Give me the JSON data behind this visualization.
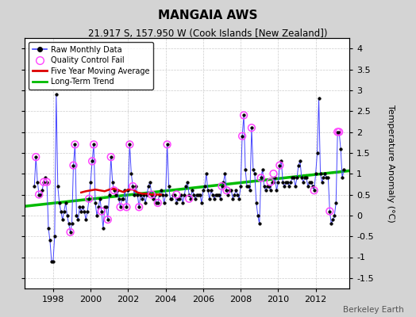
{
  "title": "MANGAIA AWS",
  "subtitle": "21.917 S, 157.950 W (Cook Islands [New Zealand])",
  "ylabel": "Temperature Anomaly (°C)",
  "credit": "Berkeley Earth",
  "ylim": [
    -1.75,
    4.25
  ],
  "xlim": [
    1996.5,
    2013.8
  ],
  "yticks": [
    -1.5,
    -1.0,
    -0.5,
    0.0,
    0.5,
    1.0,
    1.5,
    2.0,
    2.5,
    3.0,
    3.5,
    4.0
  ],
  "xticks": [
    1998,
    2000,
    2002,
    2004,
    2006,
    2008,
    2010,
    2012
  ],
  "fig_bg_color": "#d4d4d4",
  "plot_bg_color": "#ffffff",
  "raw_line_color": "#4444ff",
  "raw_marker_color": "#000000",
  "qc_color": "#ff44ff",
  "ma_color": "#dd0000",
  "trend_color": "#00bb00",
  "trend_x": [
    1996.5,
    2013.8
  ],
  "trend_y": [
    0.22,
    1.07
  ],
  "raw_x": [
    1997.0,
    1997.083,
    1997.167,
    1997.25,
    1997.333,
    1997.417,
    1997.5,
    1997.583,
    1997.667,
    1997.75,
    1997.833,
    1997.917,
    1998.0,
    1998.083,
    1998.167,
    1998.25,
    1998.333,
    1998.417,
    1998.5,
    1998.583,
    1998.667,
    1998.75,
    1998.833,
    1998.917,
    1999.0,
    1999.083,
    1999.167,
    1999.25,
    1999.333,
    1999.417,
    1999.5,
    1999.583,
    1999.667,
    1999.75,
    1999.833,
    1999.917,
    2000.0,
    2000.083,
    2000.167,
    2000.25,
    2000.333,
    2000.417,
    2000.5,
    2000.583,
    2000.667,
    2000.75,
    2000.833,
    2000.917,
    2001.0,
    2001.083,
    2001.167,
    2001.25,
    2001.333,
    2001.417,
    2001.5,
    2001.583,
    2001.667,
    2001.75,
    2001.833,
    2001.917,
    2002.0,
    2002.083,
    2002.167,
    2002.25,
    2002.333,
    2002.417,
    2002.5,
    2002.583,
    2002.667,
    2002.75,
    2002.833,
    2002.917,
    2003.0,
    2003.083,
    2003.167,
    2003.25,
    2003.333,
    2003.417,
    2003.5,
    2003.583,
    2003.667,
    2003.75,
    2003.833,
    2003.917,
    2004.0,
    2004.083,
    2004.167,
    2004.25,
    2004.333,
    2004.417,
    2004.5,
    2004.583,
    2004.667,
    2004.75,
    2004.833,
    2004.917,
    2005.0,
    2005.083,
    2005.167,
    2005.25,
    2005.333,
    2005.417,
    2005.5,
    2005.583,
    2005.667,
    2005.75,
    2005.833,
    2005.917,
    2006.0,
    2006.083,
    2006.167,
    2006.25,
    2006.333,
    2006.417,
    2006.5,
    2006.583,
    2006.667,
    2006.75,
    2006.833,
    2006.917,
    2007.0,
    2007.083,
    2007.167,
    2007.25,
    2007.333,
    2007.417,
    2007.5,
    2007.583,
    2007.667,
    2007.75,
    2007.833,
    2007.917,
    2008.0,
    2008.083,
    2008.167,
    2008.25,
    2008.333,
    2008.417,
    2008.5,
    2008.583,
    2008.667,
    2008.75,
    2008.833,
    2008.917,
    2009.0,
    2009.083,
    2009.167,
    2009.25,
    2009.333,
    2009.417,
    2009.5,
    2009.583,
    2009.667,
    2009.75,
    2009.833,
    2009.917,
    2010.0,
    2010.083,
    2010.167,
    2010.25,
    2010.333,
    2010.417,
    2010.5,
    2010.583,
    2010.667,
    2010.75,
    2010.833,
    2010.917,
    2011.0,
    2011.083,
    2011.167,
    2011.25,
    2011.333,
    2011.417,
    2011.5,
    2011.583,
    2011.667,
    2011.75,
    2011.833,
    2011.917,
    2012.0,
    2012.083,
    2012.167,
    2012.25,
    2012.333,
    2012.417,
    2012.5,
    2012.583,
    2012.667,
    2012.75,
    2012.833,
    2012.917,
    2013.0,
    2013.083,
    2013.167,
    2013.25,
    2013.333,
    2013.417,
    2013.5
  ],
  "raw_y": [
    0.7,
    1.4,
    0.8,
    0.5,
    0.5,
    0.6,
    0.8,
    0.9,
    0.8,
    -0.3,
    -0.6,
    -1.1,
    -1.1,
    -0.5,
    2.9,
    0.7,
    0.3,
    0.1,
    -0.1,
    0.1,
    0.3,
    0.0,
    -0.2,
    -0.4,
    -0.2,
    1.2,
    1.7,
    0.0,
    -0.1,
    0.2,
    0.1,
    0.2,
    0.1,
    -0.1,
    0.1,
    0.4,
    0.8,
    1.3,
    1.7,
    0.3,
    0.0,
    0.2,
    0.4,
    0.1,
    -0.3,
    0.2,
    0.2,
    -0.1,
    0.5,
    1.4,
    0.8,
    0.6,
    0.5,
    0.6,
    0.4,
    0.2,
    0.4,
    0.4,
    0.6,
    0.2,
    0.6,
    1.7,
    1.0,
    0.7,
    0.5,
    0.7,
    0.5,
    0.2,
    0.5,
    0.4,
    0.5,
    0.3,
    0.5,
    0.7,
    0.8,
    0.5,
    0.4,
    0.5,
    0.3,
    0.3,
    0.5,
    0.6,
    0.5,
    0.3,
    0.5,
    1.7,
    0.7,
    0.4,
    0.4,
    0.5,
    0.5,
    0.3,
    0.4,
    0.4,
    0.5,
    0.3,
    0.5,
    0.7,
    0.8,
    0.5,
    0.4,
    0.6,
    0.5,
    0.4,
    0.5,
    0.5,
    0.5,
    0.3,
    0.6,
    0.7,
    1.0,
    0.6,
    0.4,
    0.6,
    0.5,
    0.4,
    0.5,
    0.5,
    0.5,
    0.4,
    0.7,
    0.8,
    1.0,
    0.6,
    0.5,
    0.6,
    0.6,
    0.4,
    0.5,
    0.6,
    0.5,
    0.4,
    0.7,
    1.9,
    2.4,
    1.1,
    0.7,
    0.7,
    0.6,
    2.1,
    1.1,
    1.0,
    0.3,
    0.0,
    -0.2,
    0.9,
    1.1,
    0.7,
    0.6,
    0.7,
    0.7,
    0.6,
    0.8,
    0.8,
    0.9,
    0.6,
    0.8,
    1.2,
    1.3,
    0.8,
    0.7,
    0.8,
    0.8,
    0.7,
    0.8,
    0.9,
    0.9,
    0.7,
    0.9,
    1.2,
    1.3,
    0.9,
    0.8,
    0.9,
    0.9,
    0.7,
    0.8,
    0.8,
    0.7,
    0.6,
    1.0,
    1.5,
    2.8,
    1.0,
    0.8,
    0.9,
    1.0,
    0.9,
    0.9,
    0.1,
    -0.2,
    -0.1,
    0.0,
    0.3,
    2.0,
    2.0,
    1.6,
    0.9,
    1.1
  ],
  "qc_x": [
    1997.083,
    1997.25,
    1997.5,
    1997.667,
    1998.917,
    1999.083,
    1999.167,
    1999.917,
    2000.083,
    2000.167,
    2000.583,
    2000.917,
    2001.083,
    2001.25,
    2001.583,
    2001.917,
    2002.083,
    2002.25,
    2002.583,
    2003.25,
    2003.583,
    2004.083,
    2004.583,
    2005.25,
    2007.0,
    2007.25,
    2008.083,
    2008.167,
    2008.583,
    2009.083,
    2009.583,
    2009.75,
    2010.083,
    2011.917,
    2012.75,
    2013.167,
    2013.25
  ],
  "qc_y": [
    1.4,
    0.5,
    0.8,
    0.8,
    -0.4,
    1.2,
    1.7,
    0.4,
    1.3,
    1.7,
    0.1,
    -0.1,
    1.4,
    0.6,
    0.2,
    0.2,
    1.7,
    0.7,
    0.2,
    0.5,
    0.3,
    1.7,
    0.5,
    0.4,
    0.7,
    0.6,
    1.9,
    2.4,
    2.1,
    0.9,
    0.8,
    1.0,
    1.2,
    0.6,
    0.1,
    2.0,
    2.0
  ],
  "ma_x": [
    1999.5,
    1999.75,
    2000.0,
    2000.25,
    2000.5,
    2000.75,
    2001.0,
    2001.25,
    2001.5,
    2001.75,
    2002.0,
    2002.25,
    2002.5,
    2002.75,
    2003.0,
    2003.25,
    2003.5,
    2003.75
  ],
  "ma_y": [
    0.55,
    0.58,
    0.6,
    0.62,
    0.6,
    0.58,
    0.62,
    0.64,
    0.6,
    0.56,
    0.62,
    0.62,
    0.55,
    0.52,
    0.52,
    0.5,
    0.5,
    0.5
  ]
}
